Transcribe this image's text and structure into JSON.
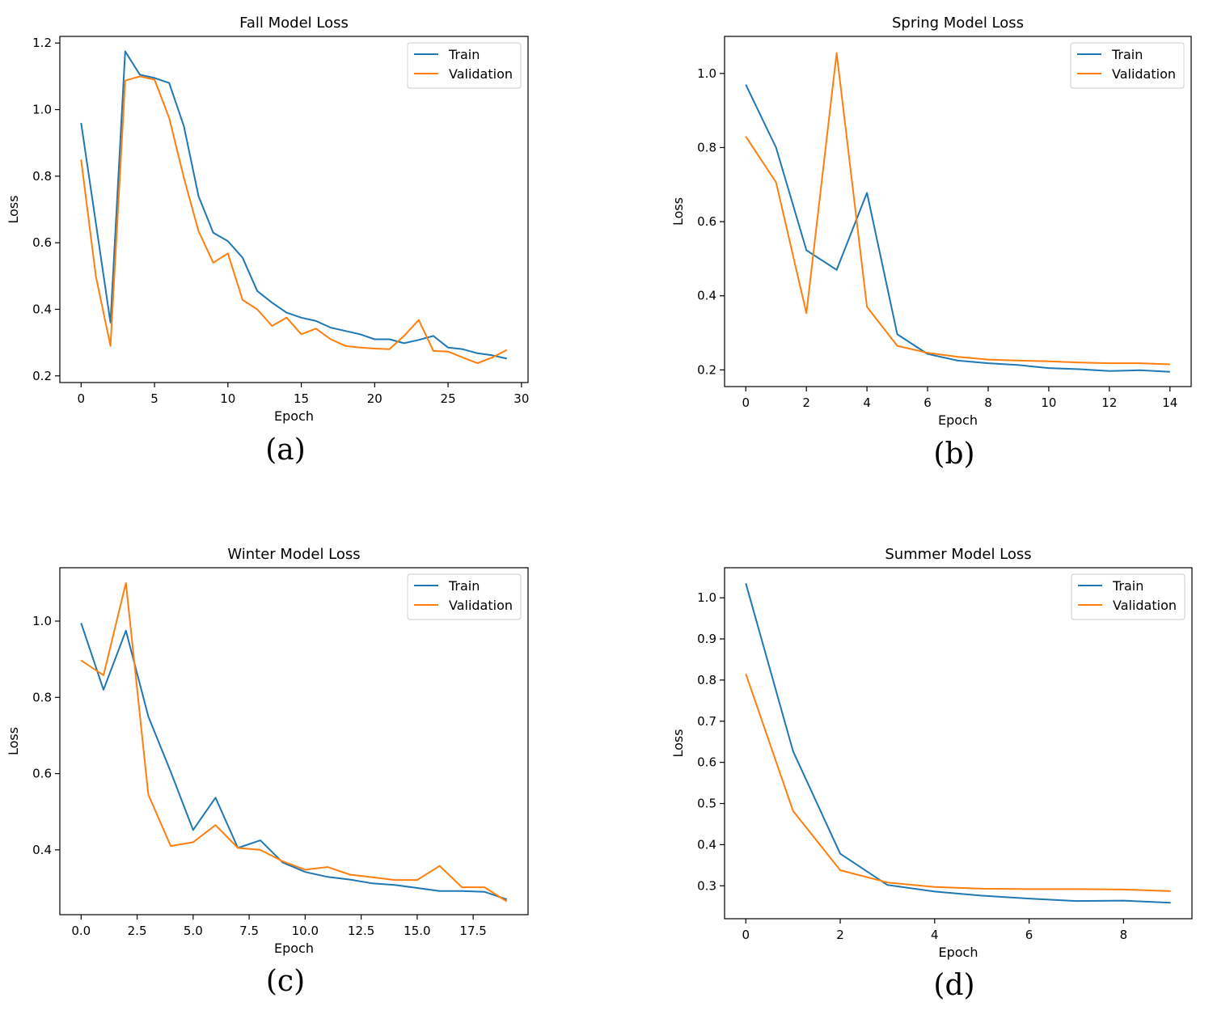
{
  "chart_data": [
    {
      "type": "line",
      "title": "Fall Model Loss",
      "xlabel": "Epoch",
      "ylabel": "Loss",
      "caption": "(a)",
      "xlim": [
        -1.45,
        30.45
      ],
      "ylim": [
        0.18,
        1.22
      ],
      "xticks": [
        0,
        5,
        10,
        15,
        20,
        25,
        30
      ],
      "xtick_labels": [
        "0",
        "5",
        "10",
        "15",
        "20",
        "25",
        "30"
      ],
      "yticks": [
        0.2,
        0.4,
        0.6,
        0.8,
        1.0,
        1.2
      ],
      "ytick_labels": [
        "0.2",
        "0.4",
        "0.6",
        "0.8",
        "1.0",
        "1.2"
      ],
      "legend_position": "top-right",
      "series": [
        {
          "name": "Train",
          "color": "#1f77b4",
          "x": [
            0,
            1,
            2,
            3,
            4,
            5,
            6,
            7,
            8,
            9,
            10,
            11,
            12,
            13,
            14,
            15,
            16,
            17,
            18,
            19,
            20,
            21,
            22,
            23,
            24,
            25,
            26,
            27,
            28,
            29
          ],
          "values": [
            0.96,
            0.66,
            0.36,
            1.175,
            1.105,
            1.095,
            1.08,
            0.95,
            0.74,
            0.63,
            0.605,
            0.555,
            0.455,
            0.42,
            0.39,
            0.375,
            0.365,
            0.345,
            0.335,
            0.325,
            0.31,
            0.31,
            0.298,
            0.308,
            0.32,
            0.285,
            0.28,
            0.268,
            0.262,
            0.252
          ]
        },
        {
          "name": "Validation",
          "color": "#ff7f0e",
          "x": [
            0,
            1,
            2,
            3,
            4,
            5,
            6,
            7,
            8,
            9,
            10,
            11,
            12,
            13,
            14,
            15,
            16,
            17,
            18,
            19,
            20,
            21,
            22,
            23,
            24,
            25,
            26,
            27,
            28,
            29
          ],
          "values": [
            0.85,
            0.5,
            0.29,
            1.087,
            1.1,
            1.09,
            0.975,
            0.795,
            0.635,
            0.54,
            0.568,
            0.428,
            0.4,
            0.35,
            0.375,
            0.325,
            0.342,
            0.31,
            0.29,
            0.285,
            0.282,
            0.28,
            0.32,
            0.368,
            0.275,
            0.273,
            0.255,
            0.238,
            0.255,
            0.278
          ]
        }
      ]
    },
    {
      "type": "line",
      "title": "Spring Model Loss",
      "xlabel": "Epoch",
      "ylabel": "Loss",
      "caption": "(b)",
      "xlim": [
        -0.7,
        14.7
      ],
      "ylim": [
        0.155,
        1.1
      ],
      "xticks": [
        0,
        2,
        4,
        6,
        8,
        10,
        12,
        14
      ],
      "xtick_labels": [
        "0",
        "2",
        "4",
        "6",
        "8",
        "10",
        "12",
        "14"
      ],
      "yticks": [
        0.2,
        0.4,
        0.6,
        0.8,
        1.0
      ],
      "ytick_labels": [
        "0.2",
        "0.4",
        "0.6",
        "0.8",
        "1.0"
      ],
      "legend_position": "top-right",
      "series": [
        {
          "name": "Train",
          "color": "#1f77b4",
          "x": [
            0,
            1,
            2,
            3,
            4,
            5,
            6,
            7,
            8,
            9,
            10,
            11,
            12,
            13,
            14
          ],
          "values": [
            0.97,
            0.8,
            0.523,
            0.47,
            0.678,
            0.296,
            0.243,
            0.225,
            0.218,
            0.213,
            0.205,
            0.202,
            0.197,
            0.199,
            0.195
          ]
        },
        {
          "name": "Validation",
          "color": "#ff7f0e",
          "x": [
            0,
            1,
            2,
            3,
            4,
            5,
            6,
            7,
            8,
            9,
            10,
            11,
            12,
            13,
            14
          ],
          "values": [
            0.83,
            0.706,
            0.353,
            1.055,
            0.37,
            0.265,
            0.246,
            0.235,
            0.228,
            0.225,
            0.223,
            0.22,
            0.218,
            0.218,
            0.215
          ]
        }
      ]
    },
    {
      "type": "line",
      "title": "Winter Model Loss",
      "xlabel": "Epoch",
      "ylabel": "Loss",
      "caption": "(c)",
      "xlim": [
        -0.95,
        19.95
      ],
      "ylim": [
        0.23,
        1.14
      ],
      "xticks": [
        0,
        2.5,
        5,
        7.5,
        10,
        12.5,
        15,
        17.5
      ],
      "xtick_labels": [
        "0.0",
        "2.5",
        "5.0",
        "7.5",
        "10.0",
        "12.5",
        "15.0",
        "17.5"
      ],
      "yticks": [
        0.4,
        0.6,
        0.8,
        1.0
      ],
      "ytick_labels": [
        "0.4",
        "0.6",
        "0.8",
        "1.0"
      ],
      "legend_position": "top-right",
      "series": [
        {
          "name": "Train",
          "color": "#1f77b4",
          "x": [
            0,
            1,
            2,
            3,
            4,
            5,
            6,
            7,
            8,
            9,
            10,
            11,
            12,
            13,
            14,
            15,
            16,
            17,
            18,
            19
          ],
          "values": [
            0.995,
            0.82,
            0.975,
            0.75,
            0.605,
            0.452,
            0.537,
            0.405,
            0.425,
            0.367,
            0.342,
            0.329,
            0.322,
            0.312,
            0.308,
            0.3,
            0.292,
            0.292,
            0.29,
            0.27
          ]
        },
        {
          "name": "Validation",
          "color": "#ff7f0e",
          "x": [
            0,
            1,
            2,
            3,
            4,
            5,
            6,
            7,
            8,
            9,
            10,
            11,
            12,
            13,
            14,
            15,
            16,
            17,
            18,
            19
          ],
          "values": [
            0.897,
            0.858,
            1.1,
            0.545,
            0.41,
            0.42,
            0.465,
            0.405,
            0.4,
            0.37,
            0.348,
            0.355,
            0.335,
            0.328,
            0.321,
            0.321,
            0.358,
            0.302,
            0.302,
            0.265
          ]
        }
      ]
    },
    {
      "type": "line",
      "title": "Summer Model Loss",
      "xlabel": "Epoch",
      "ylabel": "Loss",
      "caption": "(d)",
      "xlim": [
        -0.45,
        9.45
      ],
      "ylim": [
        0.22,
        1.073
      ],
      "xticks": [
        0,
        2,
        4,
        6,
        8
      ],
      "xtick_labels": [
        "0",
        "2",
        "4",
        "6",
        "8"
      ],
      "yticks": [
        0.3,
        0.4,
        0.5,
        0.6,
        0.7,
        0.8,
        0.9,
        1.0
      ],
      "ytick_labels": [
        "0.3",
        "0.4",
        "0.5",
        "0.6",
        "0.7",
        "0.8",
        "0.9",
        "1.0"
      ],
      "legend_position": "top-right",
      "series": [
        {
          "name": "Train",
          "color": "#1f77b4",
          "x": [
            0,
            1,
            2,
            3,
            4,
            5,
            6,
            7,
            8,
            9
          ],
          "values": [
            1.035,
            0.627,
            0.378,
            0.302,
            0.286,
            0.276,
            0.269,
            0.263,
            0.264,
            0.259
          ]
        },
        {
          "name": "Validation",
          "color": "#ff7f0e",
          "x": [
            0,
            1,
            2,
            3,
            4,
            5,
            6,
            7,
            8,
            9
          ],
          "values": [
            0.815,
            0.482,
            0.338,
            0.308,
            0.297,
            0.293,
            0.292,
            0.292,
            0.291,
            0.287
          ]
        }
      ]
    }
  ]
}
